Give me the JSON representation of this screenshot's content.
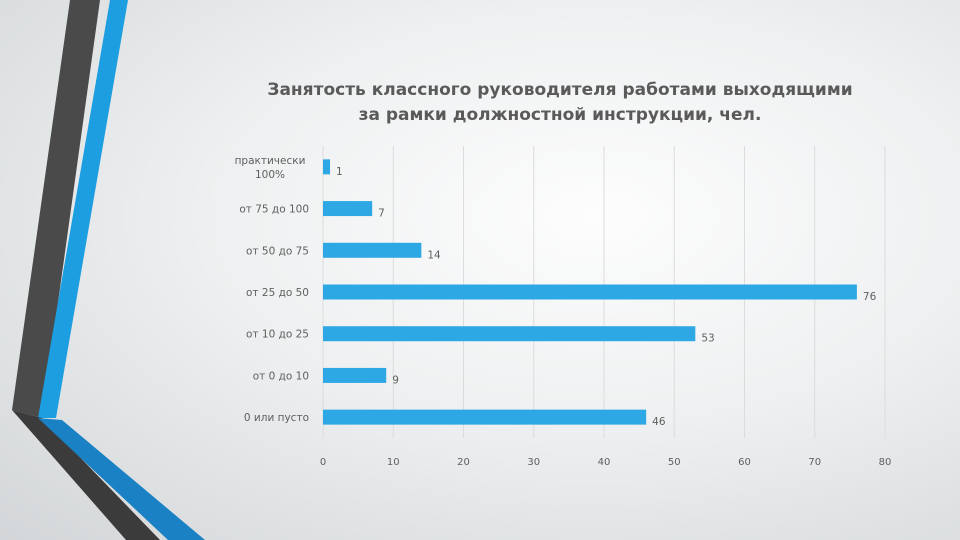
{
  "colors": {
    "bar": "#2ea8e5",
    "grid": "#dcdcdc",
    "text": "#5f5f5f",
    "accent_blue": "#1c9ee0",
    "accent_dark": "#4a4a4a"
  },
  "chart_data": {
    "type": "bar",
    "orientation": "horizontal",
    "title": "Занятость классного руководителя работами выходящими за рамки должностной инструкции, чел.",
    "categories": [
      "практически 100%",
      "от 75 до 100",
      "от 50 до 75",
      "от 25 до 50",
      "от 10 до 25",
      "от 0 до 10",
      "0 или пусто"
    ],
    "values": [
      1,
      7,
      14,
      76,
      53,
      9,
      46
    ],
    "data_labels": [
      "1",
      "7",
      "14",
      "76",
      "53",
      "9",
      "46"
    ],
    "xlim": [
      0,
      80
    ],
    "x_ticks": [
      0,
      10,
      20,
      30,
      40,
      50,
      60,
      70,
      80
    ],
    "grid": true,
    "legend": "none"
  }
}
